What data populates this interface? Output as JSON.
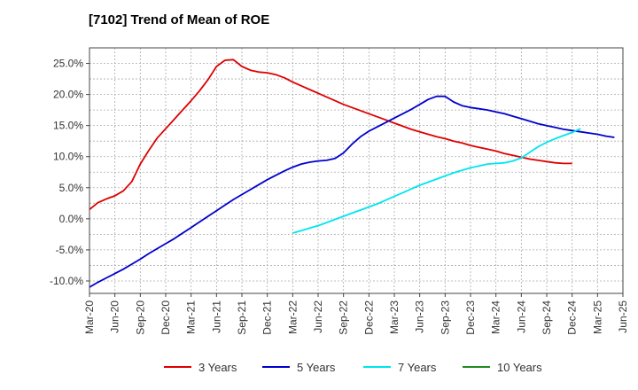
{
  "chart_data": {
    "type": "line",
    "title": "[7102]  Trend of Mean of ROE",
    "xlabel": "",
    "ylabel": "",
    "x_ticks": [
      "Mar-20",
      "Jun-20",
      "Sep-20",
      "Dec-20",
      "Mar-21",
      "Jun-21",
      "Sep-21",
      "Dec-21",
      "Mar-22",
      "Jun-22",
      "Sep-22",
      "Dec-22",
      "Mar-23",
      "Jun-23",
      "Sep-23",
      "Dec-23",
      "Mar-24",
      "Jun-24",
      "Sep-24",
      "Dec-24",
      "Mar-25",
      "Jun-25"
    ],
    "y_ticks": [
      "-10.0%",
      "-5.0%",
      "0.0%",
      "5.0%",
      "10.0%",
      "15.0%",
      "20.0%",
      "25.0%"
    ],
    "ylim": [
      -12,
      27.5
    ],
    "grid": true,
    "legend_position": "bottom",
    "series": [
      {
        "name": "3 Years",
        "color": "#dd0000",
        "values": [
          1.5,
          2.6,
          3.2,
          3.7,
          4.5,
          6.0,
          8.8,
          11.0,
          13.0,
          14.5,
          16.0,
          17.5,
          19.0,
          20.6,
          22.4,
          24.5,
          25.5,
          25.6,
          24.5,
          23.9,
          23.6,
          23.5,
          23.2,
          22.7,
          22.0,
          21.4,
          20.8,
          20.2,
          19.6,
          19.0,
          18.4,
          17.9,
          17.4,
          16.9,
          16.4,
          15.9,
          15.4,
          14.9,
          14.4,
          14.0,
          13.6,
          13.2,
          12.9,
          12.5,
          12.2,
          11.8,
          11.5,
          11.2,
          10.9,
          10.5,
          10.2,
          9.9,
          9.6,
          9.4,
          9.2,
          9.0,
          8.9,
          8.9
        ]
      },
      {
        "name": "5 Years",
        "color": "#0000cc",
        "values": [
          -11.0,
          -10.2,
          -9.5,
          -8.8,
          -8.1,
          -7.3,
          -6.5,
          -5.6,
          -4.8,
          -4.0,
          -3.2,
          -2.3,
          -1.4,
          -0.5,
          0.4,
          1.3,
          2.2,
          3.1,
          3.9,
          4.7,
          5.5,
          6.3,
          7.0,
          7.7,
          8.3,
          8.8,
          9.1,
          9.3,
          9.4,
          9.7,
          10.6,
          12.0,
          13.2,
          14.1,
          14.8,
          15.5,
          16.2,
          16.9,
          17.6,
          18.4,
          19.2,
          19.7,
          19.7,
          18.8,
          18.2,
          17.9,
          17.7,
          17.5,
          17.2,
          16.9,
          16.5,
          16.1,
          15.7,
          15.3,
          15.0,
          14.7,
          14.4,
          14.2,
          14.0,
          13.8,
          13.6,
          13.3,
          13.1
        ]
      },
      {
        "name": "7 Years",
        "color": "#00e5ee",
        "values": [
          -2.3,
          -1.9,
          -1.5,
          -1.1,
          -0.6,
          -0.1,
          0.4,
          0.9,
          1.4,
          1.9,
          2.4,
          3.0,
          3.6,
          4.2,
          4.8,
          5.4,
          5.9,
          6.4,
          6.9,
          7.4,
          7.8,
          8.2,
          8.5,
          8.8,
          8.9,
          9.0,
          9.3,
          9.8,
          10.7,
          11.6,
          12.3,
          12.9,
          13.4,
          13.9,
          14.5
        ]
      },
      {
        "name": "10 Years",
        "color": "#228b22",
        "values": []
      }
    ]
  }
}
